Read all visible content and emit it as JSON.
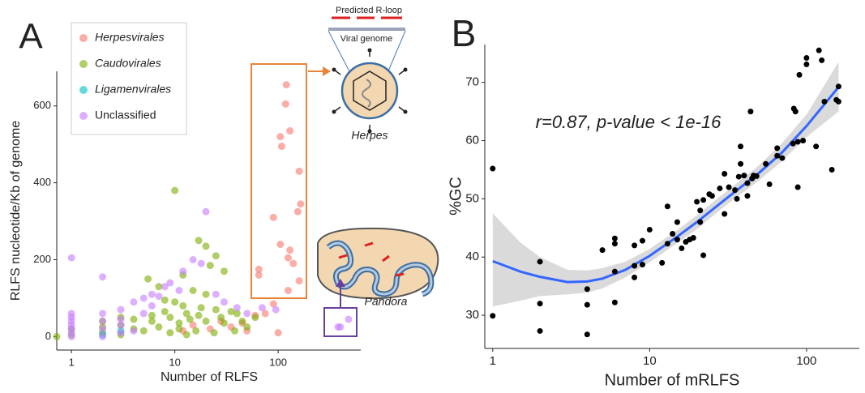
{
  "chart_data": [
    {
      "type": "scatter",
      "label": "A",
      "xlabel": "Number of RLFS",
      "ylabel": "RLFS nucleotide/Kb of genome",
      "xscale": "log",
      "xlim": [
        0.72,
        630
      ],
      "ylim": [
        -35,
        690
      ],
      "xticks": [
        1,
        10,
        100
      ],
      "yticks": [
        0,
        200,
        400,
        600
      ],
      "legend": true,
      "opacity": 0.6,
      "series": [
        {
          "name": "Herpesvirales",
          "color": "#F8766D",
          "x": [
            120,
            118,
            130,
            105,
            108,
            160,
            165,
            155,
            90,
            105,
            130,
            125,
            65,
            140,
            160,
            125,
            65,
            90,
            75,
            60,
            45,
            35,
            28,
            22,
            15,
            12,
            50,
            100
          ],
          "values": [
            655,
            605,
            535,
            520,
            495,
            430,
            345,
            325,
            310,
            240,
            225,
            205,
            175,
            190,
            145,
            120,
            160,
            85,
            60,
            55,
            35,
            25,
            40,
            20,
            30,
            15,
            15,
            10
          ]
        },
        {
          "name": "Caudovirales",
          "color": "#7CAE00",
          "x": [
            0.72,
            10,
            17,
            20,
            25,
            22,
            30,
            5.5,
            12,
            7,
            15,
            20,
            8,
            10,
            12,
            18,
            25,
            35,
            40,
            6,
            9,
            14,
            20,
            30,
            3,
            4,
            5,
            2,
            3,
            1,
            1,
            2,
            7,
            11,
            16,
            24,
            45,
            60,
            8,
            13,
            17,
            11,
            6,
            4,
            2,
            3,
            50,
            38,
            28,
            9,
            13
          ],
          "values": [
            0,
            380,
            250,
            235,
            210,
            185,
            170,
            150,
            160,
            130,
            120,
            110,
            95,
            90,
            80,
            75,
            70,
            65,
            60,
            55,
            50,
            45,
            40,
            35,
            30,
            20,
            15,
            10,
            5,
            20,
            5,
            25,
            25,
            20,
            15,
            10,
            40,
            50,
            65,
            60,
            55,
            35,
            40,
            45,
            40,
            50,
            25,
            15,
            50,
            10,
            5
          ]
        },
        {
          "name": "Ligamenvirales",
          "color": "#00BFC4",
          "x": [
            2,
            3
          ],
          "values": [
            5,
            15
          ]
        },
        {
          "name": "Unclassified",
          "color": "#C77CFF",
          "x": [
            1,
            2,
            1,
            1,
            1,
            1,
            1,
            1,
            1,
            2,
            2,
            2,
            2,
            3,
            3,
            3,
            5,
            5,
            6,
            4,
            8,
            12,
            18,
            20,
            15,
            7,
            9,
            11,
            25,
            30,
            40,
            50,
            70,
            95,
            380,
            400,
            480,
            3,
            4,
            6
          ],
          "values": [
            205,
            155,
            60,
            50,
            40,
            30,
            20,
            10,
            0,
            60,
            40,
            20,
            0,
            70,
            45,
            10,
            60,
            100,
            110,
            90,
            130,
            170,
            190,
            325,
            200,
            105,
            140,
            120,
            110,
            90,
            75,
            60,
            75,
            70,
            25,
            25,
            45,
            30,
            15,
            80
          ]
        }
      ]
    },
    {
      "type": "scatter",
      "label": "B",
      "xlabel": "Number of mRLFS",
      "ylabel": "%GC",
      "xscale": "log",
      "xlim": [
        0.89,
        217
      ],
      "ylim": [
        24.3,
        76.5
      ],
      "xticks": [
        1,
        10,
        100
      ],
      "yticks": [
        30,
        40,
        50,
        60,
        70
      ],
      "legend": false,
      "opacity": 1,
      "annotation": "r=0.87, p-value < 1e-16",
      "series": [
        {
          "color": "#000000",
          "x": [
            1,
            1,
            2,
            2,
            2,
            4,
            4,
            4,
            5,
            6,
            6,
            6,
            6,
            8,
            8,
            8,
            9,
            9,
            10,
            12,
            13,
            13,
            14,
            15,
            15,
            16,
            17,
            18,
            19,
            20,
            21,
            21,
            22,
            22,
            24,
            25,
            28,
            30,
            30,
            32,
            35,
            36,
            37,
            38,
            38,
            40,
            42,
            42,
            44,
            45,
            46,
            48,
            55,
            58,
            65,
            65,
            70,
            82,
            83,
            85,
            88,
            88,
            90,
            95,
            100,
            100,
            115,
            120,
            125,
            130,
            145,
            155,
            160,
            160
          ],
          "values": [
            55.2,
            29.9,
            39.2,
            32,
            27.3,
            34.5,
            31.8,
            26.7,
            41.2,
            43.2,
            42.3,
            32.2,
            37.5,
            38.5,
            42,
            36.5,
            42.8,
            38.7,
            44.7,
            39,
            42.3,
            48.7,
            44,
            43,
            46,
            41.5,
            42.6,
            43,
            43.3,
            49.5,
            46,
            48,
            40.3,
            49.8,
            50.8,
            50.5,
            51.8,
            54.3,
            47.4,
            52,
            51.5,
            50,
            53.8,
            56,
            59,
            54,
            50.5,
            52.7,
            65,
            53.5,
            54,
            53.9,
            56,
            52.5,
            57.4,
            58.7,
            57,
            59.5,
            65.5,
            65,
            59.8,
            52,
            71.3,
            60,
            73.1,
            74.2,
            59,
            75.5,
            73.8,
            66.7,
            55,
            67,
            69.3,
            66.7
          ]
        }
      ],
      "fit": {
        "color": "#3366FF",
        "band_color": "#D3D3D3",
        "x": [
          1,
          1.5,
          2,
          3,
          4,
          5,
          7,
          10,
          15,
          20,
          30,
          50,
          70,
          100,
          160
        ],
        "values": [
          39.3,
          37.5,
          36.6,
          35.7,
          35.8,
          36.3,
          37.8,
          40.2,
          43.5,
          46,
          49.8,
          54.5,
          58,
          62.5,
          69.2
        ],
        "lower": [
          31.5,
          32.5,
          33.3,
          33.6,
          33.9,
          34.6,
          36.5,
          39.1,
          42.4,
          44.8,
          48.7,
          53.2,
          56.5,
          60.6,
          65
        ],
        "upper": [
          47.5,
          42.5,
          40,
          37.8,
          37.7,
          38.1,
          39.2,
          41.4,
          44.6,
          47.2,
          51,
          55.8,
          59.6,
          64.5,
          73.5
        ]
      }
    }
  ],
  "diagram": {
    "rloop": "Predicted R-loop",
    "genome": "Viral genome",
    "herpes": "Herpes",
    "pandora": "Pandora"
  }
}
